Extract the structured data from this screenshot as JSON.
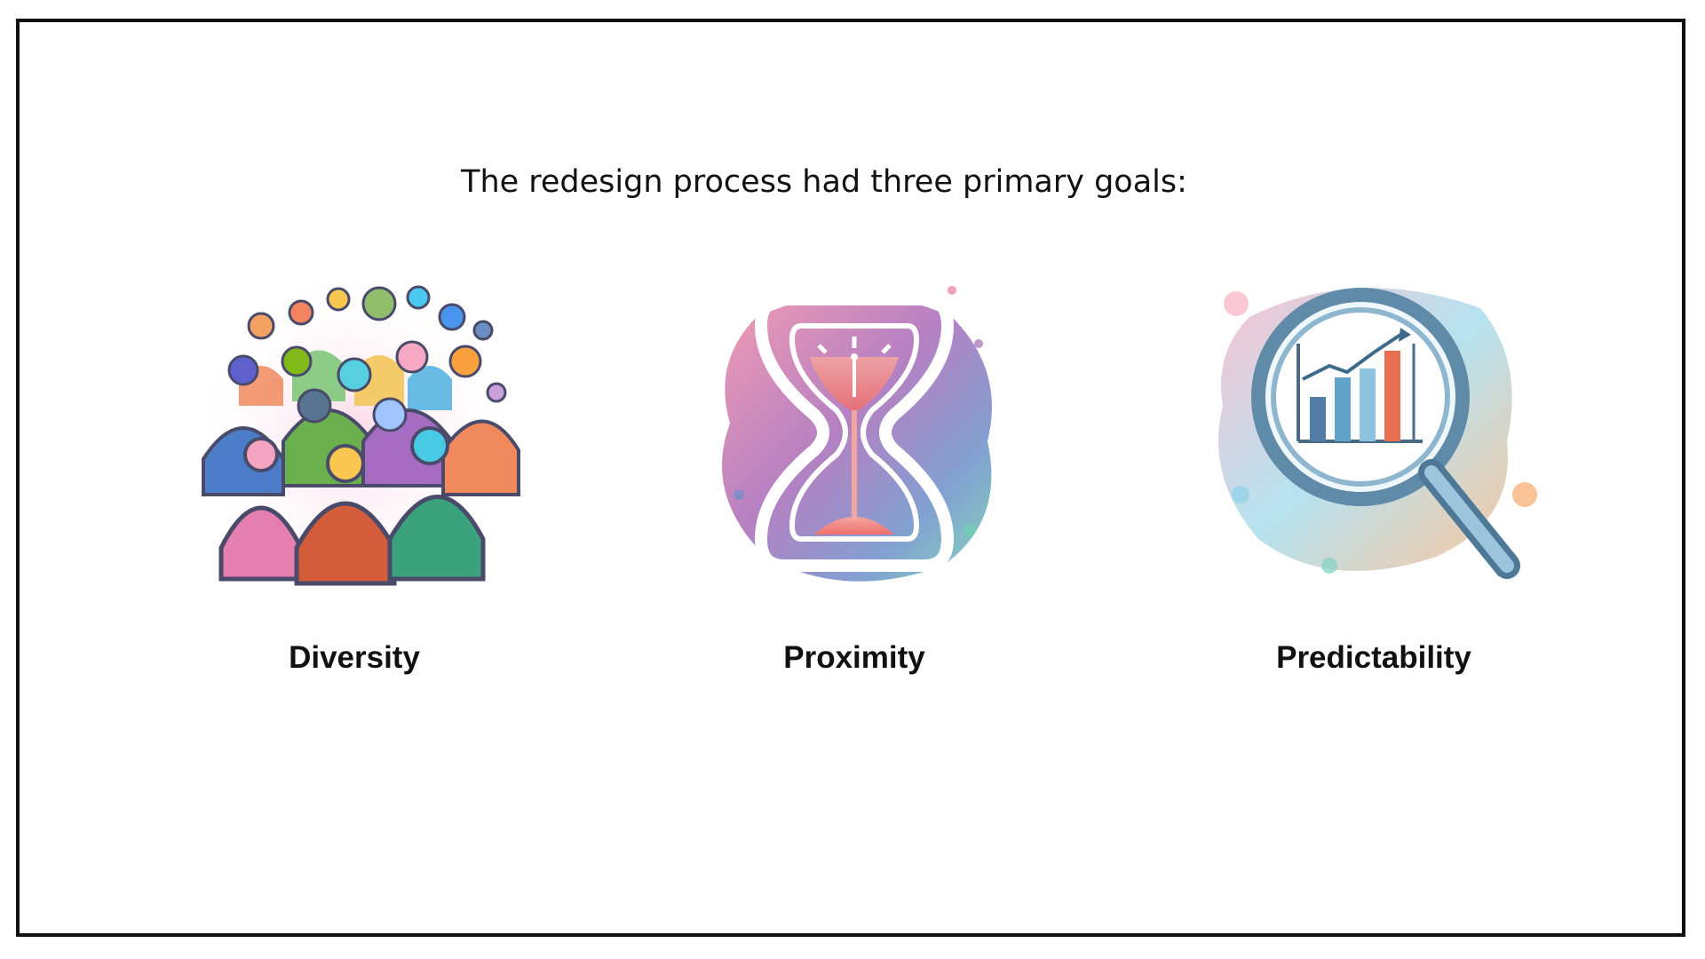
{
  "slide": {
    "intro": "The redesign process had three primary goals:",
    "goals": [
      {
        "label": "Diversity",
        "icon": "people-crowd-icon"
      },
      {
        "label": "Proximity",
        "icon": "hourglass-icon"
      },
      {
        "label": "Predictability",
        "icon": "magnifier-chart-icon"
      }
    ]
  },
  "colors": {
    "border": "#111111",
    "text": "#111111",
    "background": "#ffffff"
  }
}
